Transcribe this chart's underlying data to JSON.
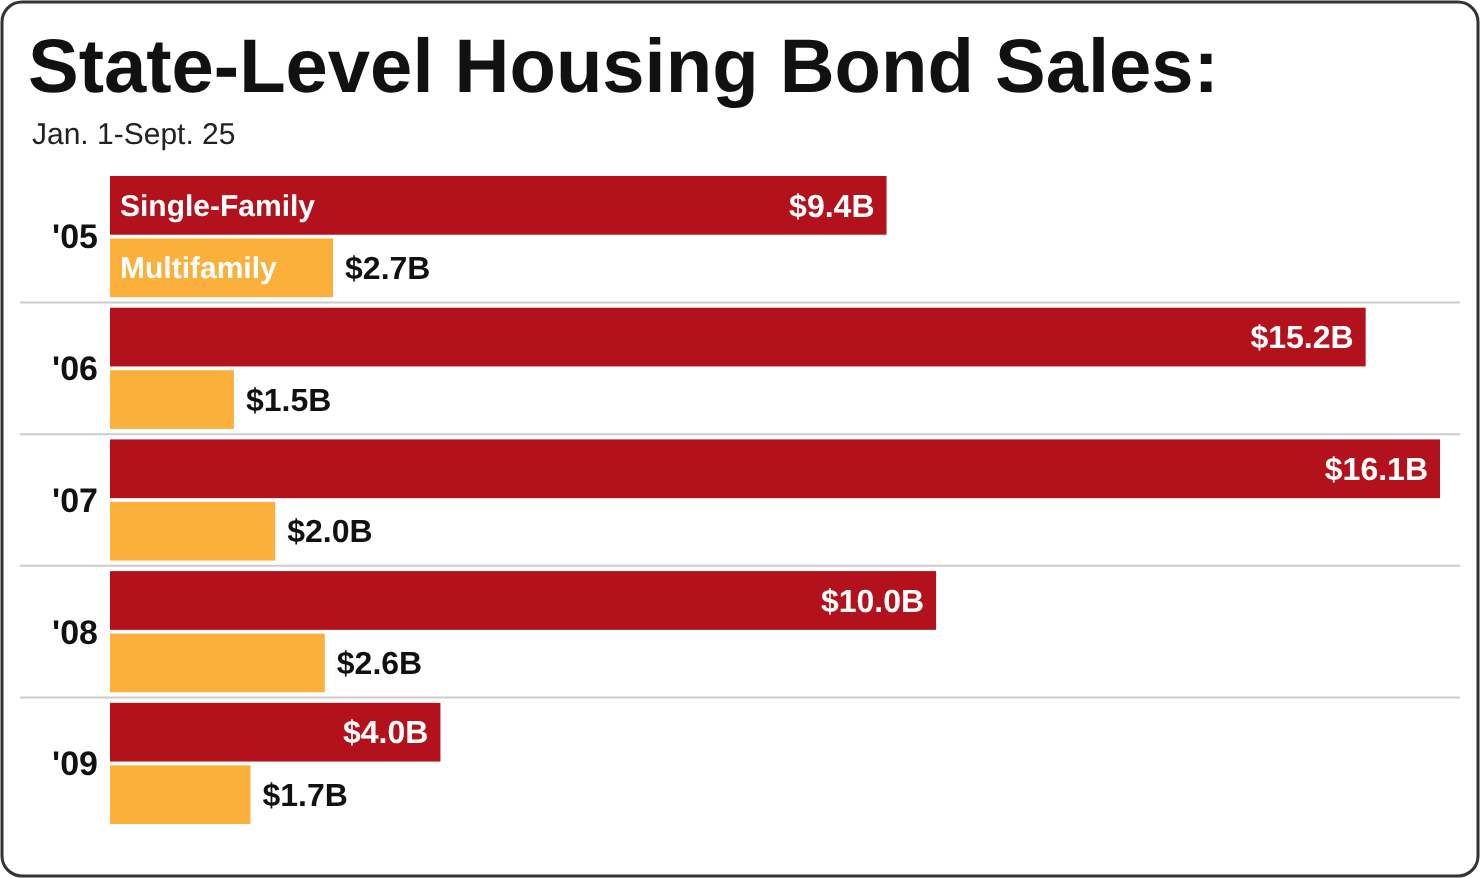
{
  "chart_data": {
    "type": "bar",
    "orientation": "horizontal",
    "title": "State-Level Housing Bond Sales:",
    "subtitle": "Jan. 1-Sept. 25",
    "categories": [
      "'05",
      "'06",
      "'07",
      "'08",
      "'09"
    ],
    "series": [
      {
        "name": "Single-Family",
        "color": "#b3121d",
        "values": [
          9.4,
          15.2,
          16.1,
          10.0,
          4.0
        ],
        "value_labels": [
          "$9.4B",
          "$15.2B",
          "$16.1B",
          "$10.0B",
          "$4.0B"
        ]
      },
      {
        "name": "Multifamily",
        "color": "#fbb03b",
        "values": [
          2.7,
          1.5,
          2.0,
          2.6,
          1.7
        ],
        "value_labels": [
          "$2.7B",
          "$1.5B",
          "$2.0B",
          "$2.6B",
          "$1.7B"
        ]
      }
    ]
  }
}
